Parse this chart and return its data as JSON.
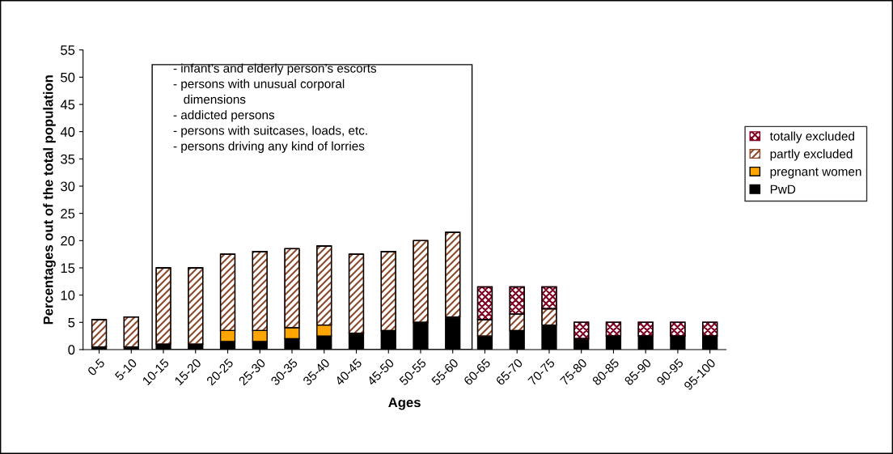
{
  "chart_data": {
    "type": "bar",
    "stacked": true,
    "xlabel": "Ages",
    "ylabel": "Percentages out of the total population",
    "categories": [
      "0-5",
      "5-10",
      "10-15",
      "15-20",
      "20-25",
      "25-30",
      "30-35",
      "35-40",
      "40-45",
      "45-50",
      "50-55",
      "55-60",
      "60-65",
      "65-70",
      "70-75",
      "75-80",
      "80-85",
      "85-90",
      "90-95",
      "95-100"
    ],
    "series": [
      {
        "name": "PwD",
        "color": "#000000",
        "values": [
          0.5,
          0.5,
          1,
          1,
          1.5,
          1.5,
          2,
          2.5,
          3,
          3.5,
          5,
          6,
          2.5,
          3.5,
          4.5,
          2,
          2.5,
          2.5,
          2.5,
          2.5
        ]
      },
      {
        "name": "pregnant women",
        "color": "#ffa500",
        "values": [
          0,
          0,
          0,
          0,
          2,
          2,
          2,
          2,
          0,
          0,
          0,
          0,
          0,
          0,
          0,
          0,
          0,
          0,
          0,
          0
        ]
      },
      {
        "name": "partly excluded",
        "color": "#8b4a2b",
        "values": [
          5,
          5.5,
          14,
          14,
          14,
          14.5,
          14.5,
          14.5,
          14.5,
          14.5,
          15,
          15.5,
          3,
          3,
          3,
          0,
          0,
          0,
          0,
          0
        ]
      },
      {
        "name": "totally excluded",
        "color": "#800020",
        "values": [
          0,
          0,
          0,
          0,
          0,
          0,
          0,
          0,
          0,
          0,
          0,
          0,
          6,
          5,
          4,
          3,
          2.5,
          2.5,
          2.5,
          2.5
        ]
      }
    ],
    "ylim": [
      0,
      55
    ],
    "yticks": [
      0,
      5,
      10,
      15,
      20,
      25,
      30,
      35,
      40,
      45,
      50,
      55
    ],
    "grid": false,
    "legend": "right",
    "annotations": [
      "- infant’s and elderly person’s escorts\n- persons with unusual corporal\n   dimensions\n- addicted persons\n- persons with suitcases, loads, etc.\n- persons driving any kind of lorries"
    ]
  }
}
